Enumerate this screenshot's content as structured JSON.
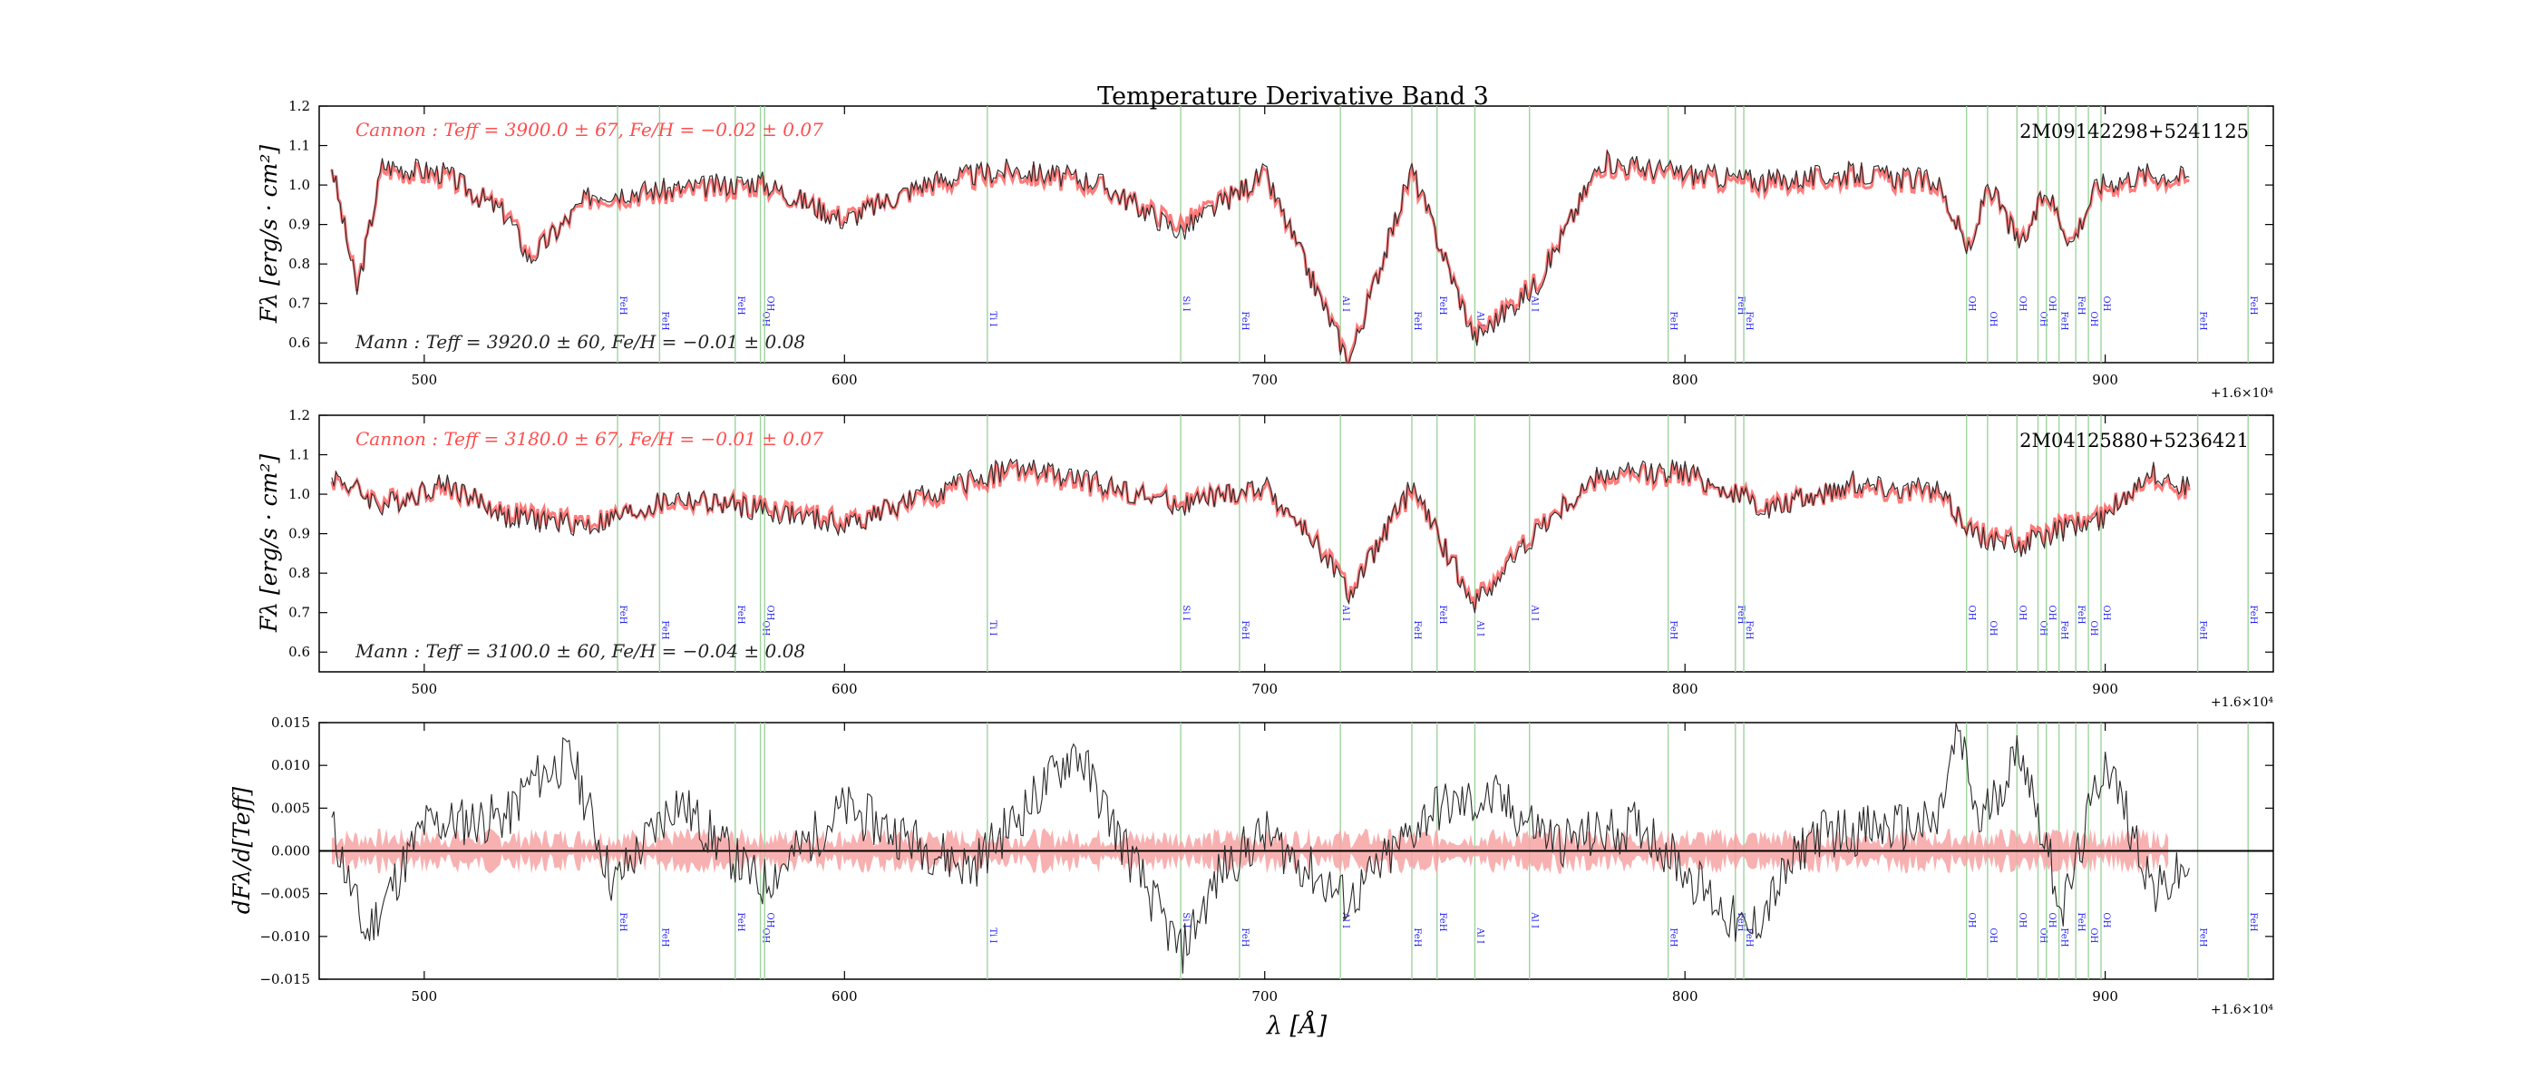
{
  "figure": {
    "title": "Temperature Derivative Band 3",
    "xlabel": "λ [Å]",
    "x_offset_label": "+1.6×10⁴"
  },
  "colors": {
    "cannon": "#ff4d4d",
    "cannon_fill": "#f7a3a3",
    "mann": "#2b2b2b",
    "marker_line": "#9fd39f",
    "marker_label": "#1f1ff0"
  },
  "chart_data": [
    {
      "type": "line",
      "panel": "spectrum-1",
      "star_id": "2M09142298+5241125",
      "ylabel": "Fλ [erg/s · cm²]",
      "xlim": [
        475,
        920
      ],
      "ylim": [
        0.55,
        1.2
      ],
      "yticks": [
        "0.6",
        "0.7",
        "0.8",
        "0.9",
        "1.0",
        "1.1",
        "1.2"
      ],
      "xticks": [
        "500",
        "600",
        "700",
        "800",
        "900"
      ],
      "x_offset": "+1.6×10⁴",
      "cannon_label": "Cannon : Teff = 3900.0 ± 67, Fe/H = −0.02 ± 0.07",
      "mann_label": "Mann : Teff = 3920.0 ± 60, Fe/H = −0.01 ± 0.08",
      "series": [
        {
          "name": "Cannon",
          "x": [
            478,
            484,
            490,
            505,
            520,
            525,
            540,
            560,
            580,
            600,
            620,
            640,
            660,
            680,
            700,
            720,
            735,
            750,
            765,
            780,
            800,
            820,
            840,
            860,
            868,
            872,
            880,
            886,
            892,
            898,
            910,
            920
          ],
          "y": [
            1.05,
            0.74,
            1.04,
            1.02,
            0.93,
            0.82,
            0.97,
            0.98,
            1.0,
            0.92,
            1.0,
            1.03,
            1.0,
            0.9,
            1.02,
            0.56,
            1.03,
            0.62,
            0.76,
            1.05,
            1.02,
            1.0,
            1.02,
            1.0,
            0.83,
            1.0,
            0.85,
            0.98,
            0.86,
            0.99,
            1.02,
            1.01
          ]
        },
        {
          "name": "Mann",
          "x": [
            478,
            484,
            490,
            505,
            520,
            525,
            540,
            560,
            580,
            600,
            620,
            640,
            660,
            680,
            700,
            720,
            735,
            750,
            765,
            780,
            800,
            820,
            840,
            860,
            868,
            872,
            880,
            886,
            892,
            898,
            910,
            920
          ],
          "y": [
            1.05,
            0.73,
            1.05,
            1.03,
            0.92,
            0.81,
            0.98,
            0.99,
            1.01,
            0.91,
            1.01,
            1.04,
            1.01,
            0.88,
            1.03,
            0.55,
            1.04,
            0.61,
            0.75,
            1.06,
            1.03,
            1.01,
            1.03,
            1.01,
            0.82,
            1.01,
            0.84,
            0.99,
            0.85,
            1.0,
            1.03,
            1.02
          ]
        }
      ]
    },
    {
      "type": "line",
      "panel": "spectrum-2",
      "star_id": "2M04125880+5236421",
      "ylabel": "Fλ [erg/s · cm²]",
      "xlim": [
        475,
        920
      ],
      "ylim": [
        0.55,
        1.2
      ],
      "yticks": [
        "0.6",
        "0.7",
        "0.8",
        "0.9",
        "1.0",
        "1.1",
        "1.2"
      ],
      "xticks": [
        "500",
        "600",
        "700",
        "800",
        "900"
      ],
      "x_offset": "+1.6×10⁴",
      "cannon_label": "Cannon : Teff = 3180.0 ± 67, Fe/H = −0.01 ± 0.07",
      "mann_label": "Mann : Teff = 3100.0 ± 60, Fe/H = −0.04 ± 0.08",
      "series": [
        {
          "name": "Cannon",
          "x": [
            478,
            490,
            505,
            520,
            540,
            560,
            580,
            600,
            620,
            640,
            660,
            680,
            700,
            715,
            720,
            735,
            750,
            765,
            780,
            800,
            820,
            840,
            860,
            870,
            880,
            890,
            900,
            910,
            920
          ],
          "y": [
            1.04,
            0.98,
            1.02,
            0.95,
            0.93,
            0.98,
            0.97,
            0.93,
            0.99,
            1.06,
            1.02,
            0.98,
            1.01,
            0.85,
            0.75,
            1.01,
            0.73,
            0.92,
            1.04,
            1.05,
            0.97,
            1.02,
            1.0,
            0.9,
            0.88,
            0.92,
            0.95,
            1.05,
            1.01
          ]
        },
        {
          "name": "Mann",
          "x": [
            478,
            490,
            505,
            520,
            540,
            560,
            580,
            600,
            620,
            640,
            660,
            680,
            700,
            715,
            720,
            735,
            750,
            765,
            780,
            800,
            820,
            840,
            860,
            870,
            880,
            890,
            900,
            910,
            920
          ],
          "y": [
            1.05,
            0.97,
            1.03,
            0.94,
            0.92,
            0.99,
            0.96,
            0.92,
            1.0,
            1.07,
            1.03,
            0.97,
            1.02,
            0.84,
            0.74,
            1.02,
            0.72,
            0.91,
            1.05,
            1.06,
            0.96,
            1.03,
            1.01,
            0.89,
            0.87,
            0.91,
            0.94,
            1.06,
            1.02
          ]
        }
      ]
    },
    {
      "type": "line",
      "panel": "derivative",
      "ylabel": "dFλ/d[Teff]",
      "xlim": [
        475,
        920
      ],
      "ylim": [
        -0.015,
        0.015
      ],
      "yticks": [
        "−0.015",
        "−0.010",
        "−0.005",
        "0.000",
        "0.005",
        "0.010",
        "0.015"
      ],
      "xticks": [
        "500",
        "600",
        "700",
        "800",
        "900"
      ],
      "x_offset": "+1.6×10⁴",
      "series": [
        {
          "name": "derivative",
          "x": [
            478,
            486,
            500,
            520,
            525,
            535,
            545,
            560,
            580,
            600,
            630,
            645,
            655,
            665,
            680,
            690,
            700,
            720,
            740,
            755,
            770,
            790,
            815,
            830,
            860,
            865,
            870,
            880,
            890,
            900,
            912,
            920
          ],
          "y": [
            0.003,
            -0.01,
            0.003,
            0.004,
            0.008,
            0.011,
            -0.004,
            0.006,
            -0.004,
            0.005,
            -0.002,
            0.006,
            0.012,
            0.002,
            -0.012,
            -0.002,
            0.002,
            -0.006,
            0.005,
            0.006,
            0.001,
            0.003,
            -0.01,
            0.002,
            0.003,
            0.014,
            0.003,
            0.012,
            -0.007,
            0.011,
            -0.005,
            -0.002
          ]
        },
        {
          "name": "uncertainty",
          "x": [
            478,
            920
          ],
          "y": [
            0.0015,
            0.0015
          ]
        }
      ]
    }
  ],
  "line_markers": [
    {
      "wl": 546,
      "label": "FeH"
    },
    {
      "wl": 556,
      "label": "FeH"
    },
    {
      "wl": 574,
      "label": "FeH"
    },
    {
      "wl": 580,
      "label": "OH"
    },
    {
      "wl": 581,
      "label": "OH"
    },
    {
      "wl": 634,
      "label": "Ti I"
    },
    {
      "wl": 680,
      "label": "Si I"
    },
    {
      "wl": 694,
      "label": "FeH"
    },
    {
      "wl": 718,
      "label": "Al I"
    },
    {
      "wl": 735,
      "label": "FeH"
    },
    {
      "wl": 741,
      "label": "FeH"
    },
    {
      "wl": 750,
      "label": "Al I"
    },
    {
      "wl": 763,
      "label": "Al I"
    },
    {
      "wl": 796,
      "label": "FeH"
    },
    {
      "wl": 812,
      "label": "FeH"
    },
    {
      "wl": 814,
      "label": "FeH"
    },
    {
      "wl": 867,
      "label": "OH"
    },
    {
      "wl": 872,
      "label": "OH"
    },
    {
      "wl": 879,
      "label": "OH"
    },
    {
      "wl": 884,
      "label": "OH"
    },
    {
      "wl": 886,
      "label": "OH"
    },
    {
      "wl": 889,
      "label": "FeH"
    },
    {
      "wl": 893,
      "label": "FeH"
    },
    {
      "wl": 896,
      "label": "OH"
    },
    {
      "wl": 899,
      "label": "OH"
    },
    {
      "wl": 922,
      "label": "FeH"
    },
    {
      "wl": 934,
      "label": "FeH"
    }
  ]
}
